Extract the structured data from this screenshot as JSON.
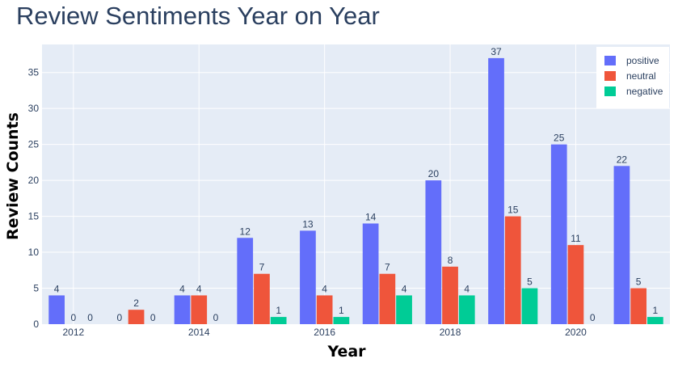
{
  "title": "Review Sentiments Year on Year",
  "chart_data": {
    "type": "bar",
    "title": "Review Sentiments Year on Year",
    "xlabel": "Year",
    "ylabel": "Review Counts",
    "categories": [
      2012,
      2013,
      2014,
      2015,
      2016,
      2017,
      2018,
      2019,
      2020,
      2021
    ],
    "x_tick_labels": [
      "2012",
      "2014",
      "2016",
      "2018",
      "2020"
    ],
    "x_tick_values": [
      2012,
      2014,
      2016,
      2018,
      2020
    ],
    "y_ticks": [
      0,
      5,
      10,
      15,
      20,
      25,
      30,
      35
    ],
    "ylim": [
      0,
      38.9
    ],
    "grid": true,
    "legend_position": "top-right",
    "series": [
      {
        "name": "positive",
        "color": "#636efa",
        "values": [
          4,
          0,
          4,
          12,
          13,
          14,
          20,
          37,
          25,
          22
        ]
      },
      {
        "name": "neutral",
        "color": "#ef553b",
        "values": [
          0,
          2,
          4,
          7,
          4,
          7,
          8,
          15,
          11,
          5
        ]
      },
      {
        "name": "negative",
        "color": "#00cc96",
        "values": [
          0,
          0,
          0,
          1,
          1,
          4,
          4,
          5,
          0,
          1
        ]
      }
    ]
  }
}
